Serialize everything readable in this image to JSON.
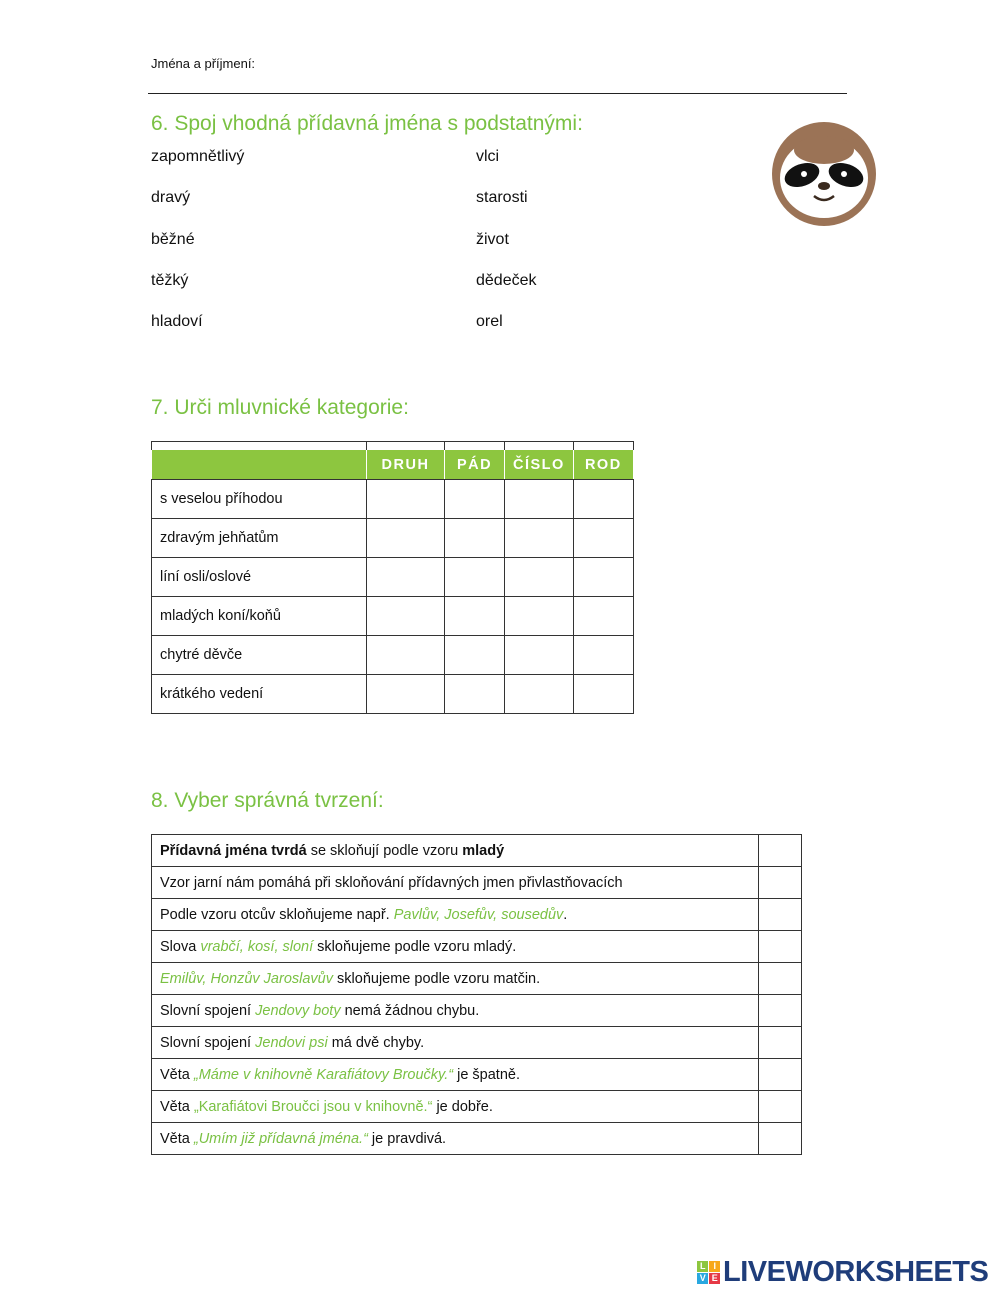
{
  "header": {
    "name_label": "Jména a příjmení:"
  },
  "section6": {
    "title": "6. Spoj vhodná přídavná jména s podstatnými:",
    "left": [
      "zapomnětlivý",
      "dravý",
      "běžné",
      "těžký",
      "hladoví"
    ],
    "right": [
      "vlci",
      "starosti",
      "život",
      "dědeček",
      "orel"
    ]
  },
  "section7": {
    "title": "7. Urči mluvnické kategorie:",
    "columns": [
      "DRUH",
      "PÁD",
      "ČÍSLO",
      "ROD"
    ],
    "rows": [
      "s veselou příhodou",
      "zdravým jehňatům",
      "líní osli/oslové",
      "mladých koní/koňů",
      "chytré děvče",
      "krátkého vedení"
    ]
  },
  "section8": {
    "title": "8. Vyber správná tvrzení:",
    "rows": [
      [
        {
          "t": "Přídavná jména tvrdá",
          "s": "b"
        },
        {
          "t": " se skloňují podle vzoru "
        },
        {
          "t": "mladý",
          "s": "b"
        }
      ],
      [
        {
          "t": "Vzor jarní nám pomáhá při skloňování přídavných jmen přivlastňovacích"
        }
      ],
      [
        {
          "t": "Podle vzoru otcův skloňujeme např. "
        },
        {
          "t": "Pavlův, Josefův, sousedův",
          "s": "gi"
        },
        {
          "t": "."
        }
      ],
      [
        {
          "t": "Slova "
        },
        {
          "t": "vrabčí, kosí, sloní",
          "s": "gi"
        },
        {
          "t": " skloňujeme podle vzoru mladý."
        }
      ],
      [
        {
          "t": "Emilův, Honzův Jaroslavův",
          "s": "gi"
        },
        {
          "t": " skloňujeme podle vzoru matčin."
        }
      ],
      [
        {
          "t": "Slovní spojení "
        },
        {
          "t": "Jendovy boty",
          "s": "gi"
        },
        {
          "t": " nemá žádnou chybu."
        }
      ],
      [
        {
          "t": "Slovní spojení "
        },
        {
          "t": "Jendovi psi",
          "s": "gi"
        },
        {
          "t": " má dvě chyby."
        }
      ],
      [
        {
          "t": "Věta "
        },
        {
          "t": "„Máme v knihovně Karafiátovy Broučky.“",
          "s": "gi"
        },
        {
          "t": " je špatně."
        }
      ],
      [
        {
          "t": "Věta "
        },
        {
          "t": "„Karafiátovi Broučci jsou v knihovně.“",
          "s": "g"
        },
        {
          "t": " je dobře."
        }
      ],
      [
        {
          "t": "Věta "
        },
        {
          "t": "„Umím již přídavná jména.“",
          "s": "gi"
        },
        {
          "t": " je pravdivá."
        }
      ]
    ]
  },
  "logo": {
    "text": "LIVEWORKSHEETS",
    "letters": [
      "L",
      "I",
      "V",
      "E"
    ]
  },
  "colors": {
    "accent": "#7ac143",
    "header_fill": "#8dc63f",
    "logo": "#1f3d7a"
  },
  "icons": [
    "sloth-icon"
  ]
}
